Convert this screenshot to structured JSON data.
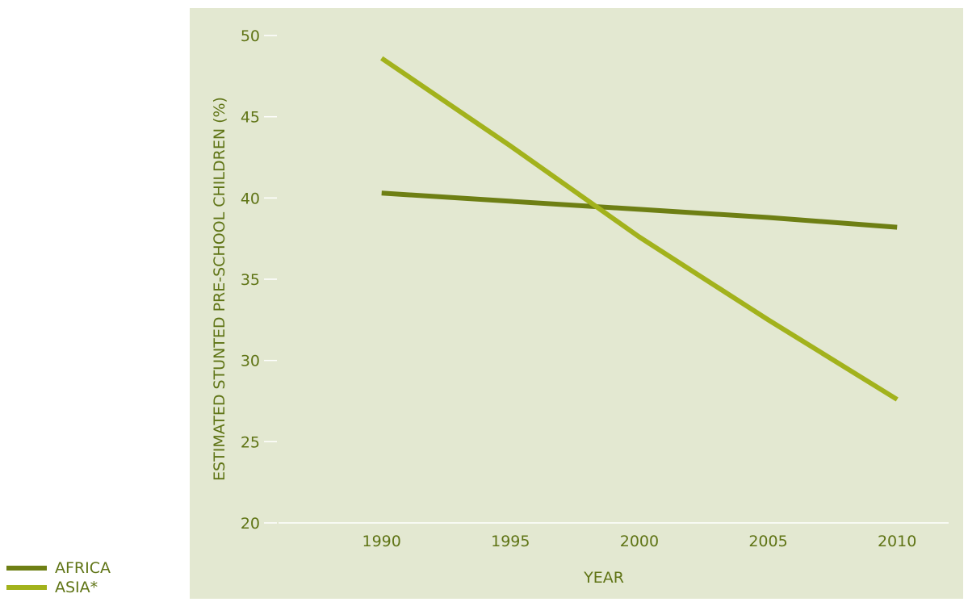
{
  "chart_data": {
    "type": "line",
    "title": "",
    "xlabel": "YEAR",
    "ylabel": "ESTIMATED STUNTED PRE-SCHOOL CHILDREN (%)",
    "x": [
      1990,
      1995,
      2000,
      2005,
      2010
    ],
    "xlim": [
      1986,
      2012
    ],
    "ylim": [
      20,
      50
    ],
    "yticks": [
      20,
      25,
      30,
      35,
      40,
      45,
      50
    ],
    "grid": false,
    "legend_position": "bottom-left",
    "colors": {
      "background": "#e3e8d1",
      "axis": "#ffffff",
      "text": "#5f7415"
    },
    "series": [
      {
        "name": "AFRICA",
        "color": "#6e7f14",
        "values": [
          40.3,
          39.8,
          39.3,
          38.8,
          38.2
        ]
      },
      {
        "name": "ASIA*",
        "color": "#a2b21c",
        "values": [
          48.6,
          43.2,
          37.6,
          32.5,
          27.6
        ]
      }
    ]
  }
}
